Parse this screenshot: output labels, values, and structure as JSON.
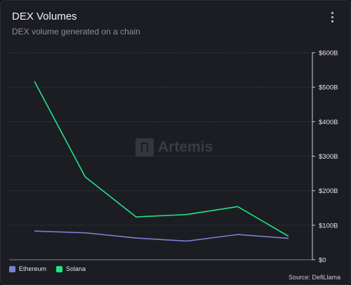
{
  "header": {
    "title": "DEX Volumes",
    "subtitle": "DEX volume generated on a chain",
    "menu_icon": "more-vertical-icon"
  },
  "watermark": {
    "text": "Artemis"
  },
  "source": "Source: DefiLlama",
  "colors": {
    "ethereum": "#7b7fd0",
    "solana": "#21e385",
    "grid": "#3a3b42",
    "axis": "#e6e6e9"
  },
  "chart_data": {
    "type": "line",
    "title": "DEX Volumes",
    "subtitle": "DEX volume generated on a chain",
    "ylim": [
      0,
      600
    ],
    "yticks": [
      0,
      100,
      200,
      300,
      400,
      500,
      600
    ],
    "ytick_labels": [
      "$0",
      "$100B",
      "$200B",
      "$300B",
      "$400B",
      "$500B",
      "$600B"
    ],
    "y_axis_position": "right",
    "grid": true,
    "legend": "bottom-left",
    "x_points": 6,
    "series": [
      {
        "name": "Ethereum",
        "color": "#7b7fd0",
        "values": [
          83,
          78,
          63,
          54,
          73,
          62
        ]
      },
      {
        "name": "Solana",
        "color": "#21e385",
        "values": [
          517,
          240,
          124,
          131,
          154,
          68
        ]
      }
    ]
  }
}
